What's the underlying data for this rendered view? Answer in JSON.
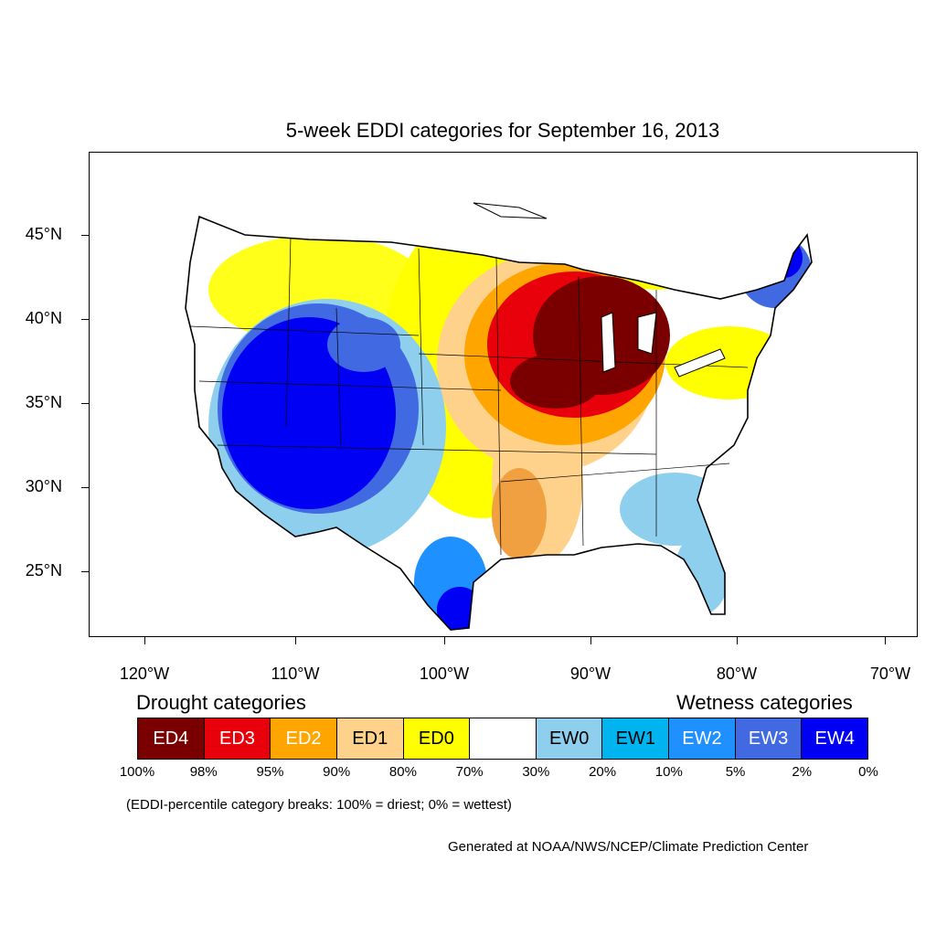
{
  "title": "5-week EDDI categories for September 16, 2013",
  "lat_labels": [
    "45°N",
    "40°N",
    "35°N",
    "30°N",
    "25°N"
  ],
  "lon_labels": [
    "120°W",
    "110°W",
    "100°W",
    "90°W",
    "80°W",
    "70°W"
  ],
  "drought_title": "Drought categories",
  "wetness_title": "Wetness categories",
  "legend": [
    {
      "label": "ED4",
      "color": "#7a0000",
      "text_color": "#ffffff"
    },
    {
      "label": "ED3",
      "color": "#e8000b",
      "text_color": "#ffffff"
    },
    {
      "label": "ED2",
      "color": "#ffa500",
      "text_color": "#ffffff"
    },
    {
      "label": "ED1",
      "color": "#ffd28c",
      "text_color": "#000000"
    },
    {
      "label": "ED0",
      "color": "#ffff00",
      "text_color": "#000000"
    },
    {
      "label": "",
      "color": "#ffffff",
      "text_color": "#000000"
    },
    {
      "label": "EW0",
      "color": "#8fcfee",
      "text_color": "#000000"
    },
    {
      "label": "EW1",
      "color": "#00b4f0",
      "text_color": "#000000"
    },
    {
      "label": "EW2",
      "color": "#1e90ff",
      "text_color": "#ffffff"
    },
    {
      "label": "EW3",
      "color": "#4169e1",
      "text_color": "#ffffff"
    },
    {
      "label": "EW4",
      "color": "#0000f5",
      "text_color": "#ffffff"
    }
  ],
  "percent_breaks": [
    "100%",
    "98%",
    "95%",
    "90%",
    "80%",
    "70%",
    "30%",
    "20%",
    "10%",
    "5%",
    "2%",
    "0%"
  ],
  "category_note": "(EDDI-percentile category breaks: 100% = driest; 0% = wettest)",
  "credit": "Generated at NOAA/NWS/NCEP/Climate Prediction Center"
}
